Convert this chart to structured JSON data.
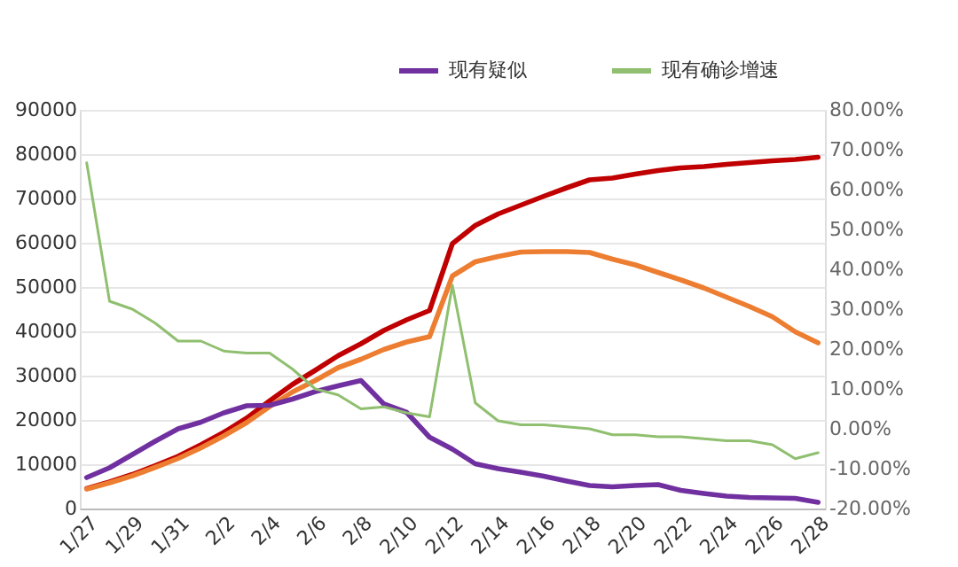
{
  "chart_data": {
    "type": "line",
    "categories": [
      "1/27",
      null,
      "1/29",
      null,
      "1/31",
      null,
      "2/2",
      null,
      "2/4",
      null,
      "2/6",
      null,
      "2/8",
      null,
      "2/10",
      null,
      "2/12",
      null,
      "2/14",
      null,
      "2/16",
      null,
      "2/18",
      null,
      "2/20",
      null,
      "2/22",
      null,
      "2/24",
      null,
      "2/26",
      null,
      "2/28"
    ],
    "series": [
      {
        "color": "#c00000",
        "values": [
          4500,
          6000,
          7700,
          9700,
          11800,
          14400,
          17200,
          20400,
          24300,
          28000,
          31200,
          34500,
          37200,
          40200,
          42600,
          44700,
          59800,
          63900,
          66500,
          68500,
          70500,
          72400,
          74200,
          74600,
          75500,
          76300,
          76900,
          77200,
          77700,
          78100,
          78500,
          78800,
          79300
        ]
      },
      {
        "color": "#ed7d31",
        "values": [
          4400,
          5800,
          7400,
          9300,
          11300,
          13700,
          16400,
          19400,
          23000,
          26300,
          28900,
          31800,
          33700,
          35900,
          37600,
          38800,
          52500,
          55700,
          56900,
          57900,
          58000,
          58000,
          57800,
          56300,
          55000,
          53300,
          51600,
          49800,
          47700,
          45600,
          43300,
          39900,
          37400
        ]
      },
      {
        "name": "现有疑似",
        "color": "#7030a0",
        "values": [
          7000,
          9200,
          12200,
          15200,
          18000,
          19500,
          21600,
          23200,
          23300,
          24700,
          26400,
          27700,
          28900,
          23600,
          21700,
          16100,
          13400,
          10100,
          9000,
          8200,
          7300,
          6200,
          5200,
          4900,
          5200,
          5400,
          4100,
          3400,
          2800,
          2500,
          2400,
          2300,
          1400
        ]
      },
      {
        "name": "现有确诊增速",
        "color": "#8fbf6f",
        "axis": "y2",
        "values": [
          66.7,
          32,
          30,
          26.5,
          22,
          22,
          19.5,
          19,
          19,
          15,
          10,
          8.5,
          5,
          5.5,
          4,
          3,
          36,
          6.5,
          2,
          1,
          1,
          0.5,
          0,
          -1.5,
          -1.5,
          -2,
          -2,
          -2.5,
          -3,
          -3,
          -4,
          -7.5,
          -6
        ]
      }
    ],
    "ylim": [
      0,
      90000
    ],
    "yticks": [
      0,
      10000,
      20000,
      30000,
      40000,
      50000,
      60000,
      70000,
      80000,
      90000
    ],
    "y2lim": [
      -20,
      80
    ],
    "y2ticks": [
      {
        "value": -20,
        "label": "-20.00%"
      },
      {
        "value": -10,
        "label": "-10.00%"
      },
      {
        "value": 0,
        "label": "0.00%"
      },
      {
        "value": 10,
        "label": "10.00%"
      },
      {
        "value": 20,
        "label": "20.00%"
      },
      {
        "value": 30,
        "label": "30.00%"
      },
      {
        "value": 40,
        "label": "40.00%"
      },
      {
        "value": 50,
        "label": "50.00%"
      },
      {
        "value": 60,
        "label": "60.00%"
      },
      {
        "value": 70,
        "label": "70.00%"
      },
      {
        "value": 80,
        "label": "80.00%"
      }
    ],
    "grid": "y",
    "legend": "top right",
    "marker": "none",
    "line_style": "solid"
  }
}
